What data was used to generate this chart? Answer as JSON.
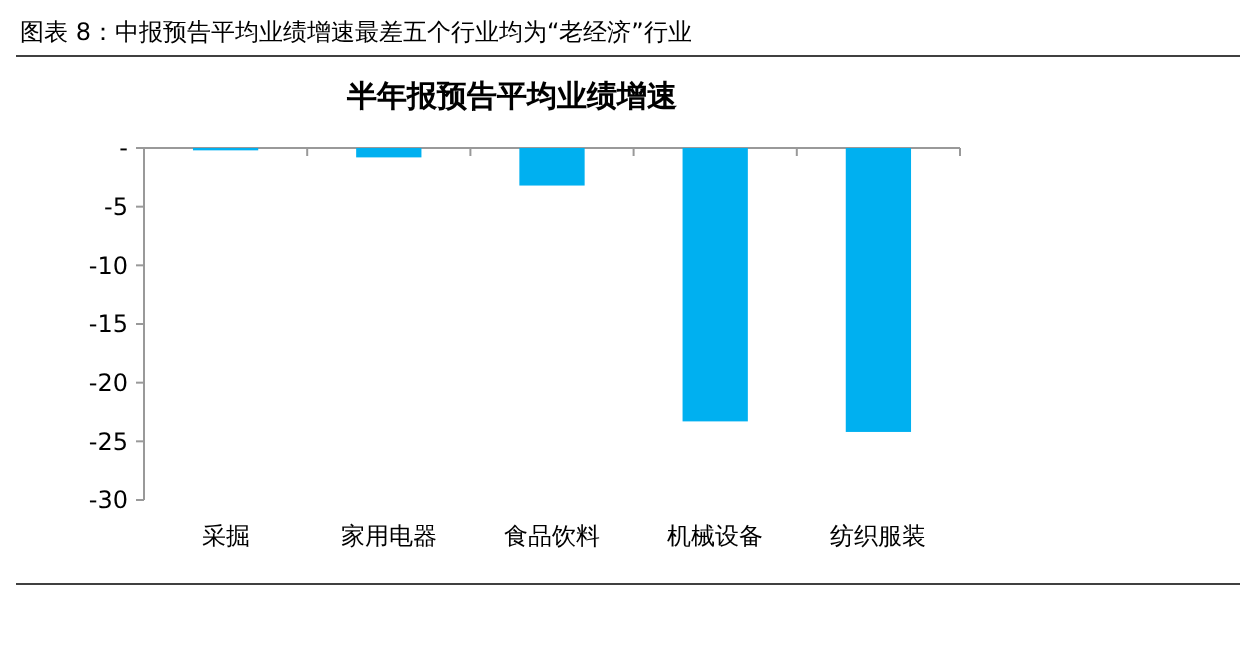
{
  "chart_data": {
    "type": "bar",
    "title": "图表 8：中报预告平均业绩增速最差五个行业均为“老经济”行业",
    "subtitle": "半年报预告平均业绩增速",
    "categories": [
      "采掘",
      "家用电器",
      "食品饮料",
      "机械设备",
      "纺织服装"
    ],
    "values": [
      -0.2,
      -0.8,
      -3.2,
      -23.3,
      -24.2
    ],
    "color": "#00b0f0",
    "ylim": [
      -30,
      0
    ],
    "yticks": [
      {
        "value": 0,
        "label": "-"
      },
      -5,
      -10,
      -15,
      -20,
      -25,
      -30
    ],
    "grid": false
  }
}
